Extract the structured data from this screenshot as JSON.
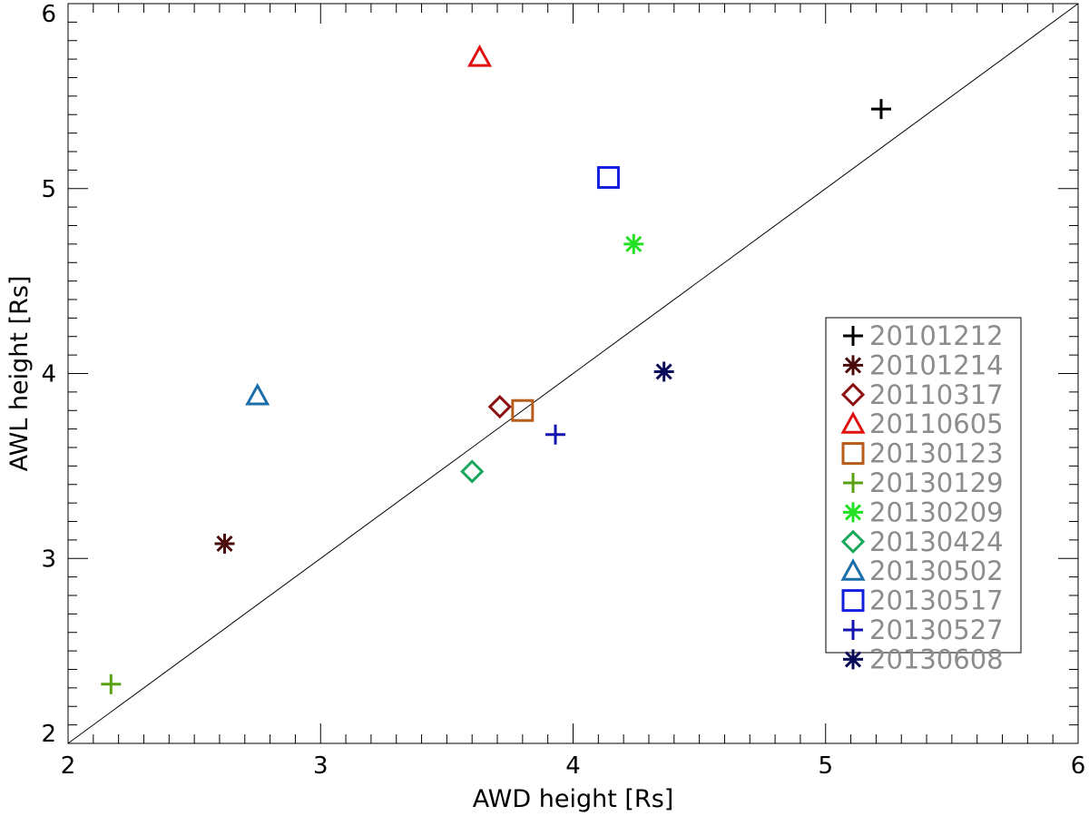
{
  "chart_data": {
    "type": "scatter",
    "xlabel": "AWD height [Rs]",
    "ylabel": "AWL height [Rs]",
    "xlim": [
      2,
      6
    ],
    "ylim": [
      2,
      6
    ],
    "x_ticks": [
      2,
      3,
      4,
      5,
      6
    ],
    "y_ticks": [
      2,
      3,
      4,
      5,
      6
    ],
    "x_ticks_text": [
      "2",
      "3",
      "4",
      "5",
      "6"
    ],
    "y_ticks_text": [
      "2",
      "3",
      "4",
      "5",
      "6"
    ],
    "reference_line": {
      "name": "y = x",
      "x": [
        2,
        6
      ],
      "y": [
        2,
        6
      ]
    },
    "legend_position": "right",
    "series": [
      {
        "name": "20101212",
        "marker": "plus",
        "color": "#000000",
        "x": 5.22,
        "y": 5.43
      },
      {
        "name": "20101214",
        "marker": "asterisk",
        "color": "#4a0a0a",
        "x": 2.62,
        "y": 3.08
      },
      {
        "name": "20110317",
        "marker": "diamond",
        "color": "#8b1010",
        "x": 3.71,
        "y": 3.82
      },
      {
        "name": "20110605",
        "marker": "triangle",
        "color": "#e01010",
        "x": 3.63,
        "y": 5.71
      },
      {
        "name": "20130123",
        "marker": "square",
        "color": "#b85c1a",
        "x": 3.8,
        "y": 3.8
      },
      {
        "name": "20130129",
        "marker": "plus",
        "color": "#5aa014",
        "x": 2.17,
        "y": 2.32
      },
      {
        "name": "20130209",
        "marker": "asterisk",
        "color": "#22e022",
        "x": 4.24,
        "y": 4.7
      },
      {
        "name": "20130424",
        "marker": "diamond",
        "color": "#1aa85a",
        "x": 3.6,
        "y": 3.47
      },
      {
        "name": "20130502",
        "marker": "triangle",
        "color": "#1a6eaa",
        "x": 2.75,
        "y": 3.88
      },
      {
        "name": "20130517",
        "marker": "square",
        "color": "#1420e0",
        "x": 4.14,
        "y": 5.06
      },
      {
        "name": "20130527",
        "marker": "plus",
        "color": "#1414b0",
        "x": 3.93,
        "y": 3.67
      },
      {
        "name": "20130608",
        "marker": "asterisk",
        "color": "#0a0a5a",
        "x": 4.36,
        "y": 4.01
      }
    ]
  }
}
